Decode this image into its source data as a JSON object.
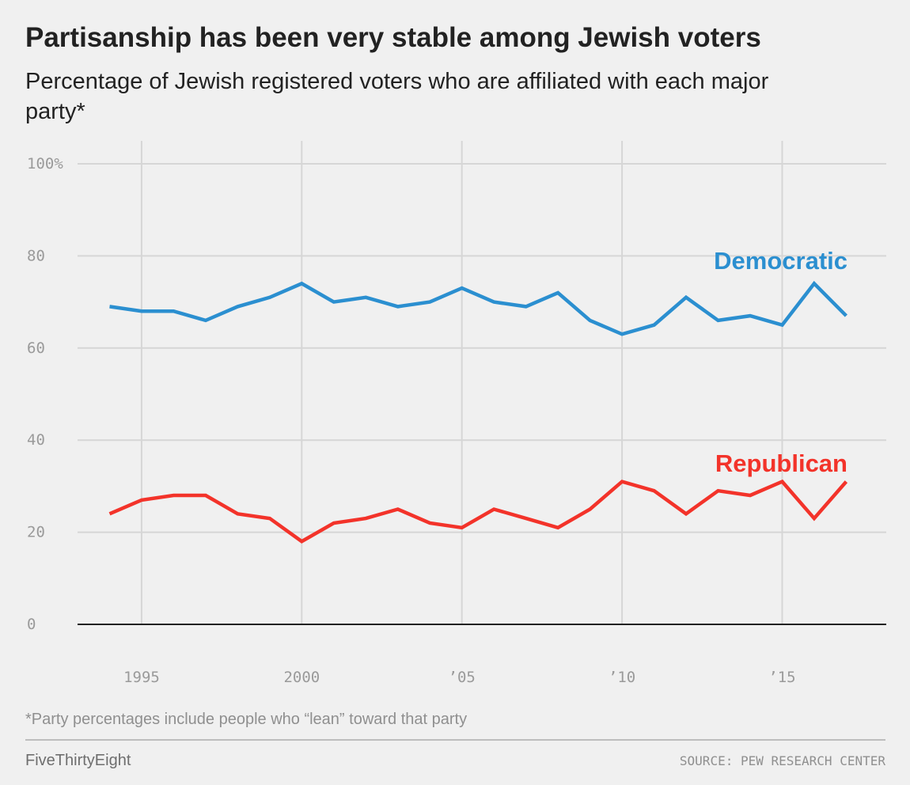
{
  "header": {
    "title": "Partisanship has been very stable among Jewish voters",
    "subtitle": "Percentage of Jewish registered voters who are affiliated with each major party*"
  },
  "footer": {
    "footnote": "*Party percentages include people who “lean” toward that party",
    "brand": "FiveThirtyEight",
    "source": "SOURCE: PEW RESEARCH CENTER"
  },
  "colors": {
    "democratic": "#2b8fd0",
    "republican": "#f3332a",
    "grid": "#d6d6d6",
    "axis": "#222222"
  },
  "chart_data": {
    "type": "line",
    "title": "Partisanship has been very stable among Jewish voters",
    "subtitle": "Percentage of Jewish registered voters who are affiliated with each major party*",
    "xlabel": "",
    "ylabel": "",
    "xlim": [
      1993,
      2018.25
    ],
    "ylim": [
      0,
      100
    ],
    "x_ticks": [
      1995,
      2000,
      2005,
      2010,
      2015
    ],
    "x_tick_labels": [
      "1995",
      "2000",
      "’05",
      "’10",
      "’15"
    ],
    "y_ticks": [
      0,
      20,
      40,
      60,
      80,
      100
    ],
    "y_tick_labels": [
      "0",
      "20",
      "40",
      "60",
      "80",
      "100%"
    ],
    "grid": true,
    "x": [
      1994,
      1995,
      1996,
      1997,
      1998,
      1999,
      2000,
      2001,
      2002,
      2003,
      2004,
      2005,
      2006,
      2007,
      2008,
      2009,
      2010,
      2011,
      2012,
      2013,
      2014,
      2015,
      2016,
      2017
    ],
    "series": [
      {
        "name": "Democratic",
        "color": "#2b8fd0",
        "values": [
          69,
          68,
          68,
          66,
          69,
          71,
          74,
          70,
          71,
          69,
          70,
          73,
          70,
          69,
          72,
          66,
          63,
          65,
          71,
          66,
          67,
          65,
          74,
          67
        ]
      },
      {
        "name": "Republican",
        "color": "#f3332a",
        "values": [
          24,
          27,
          28,
          28,
          24,
          23,
          18,
          22,
          23,
          25,
          22,
          21,
          25,
          23,
          21,
          25,
          31,
          29,
          24,
          29,
          28,
          31,
          23,
          31
        ]
      }
    ]
  }
}
